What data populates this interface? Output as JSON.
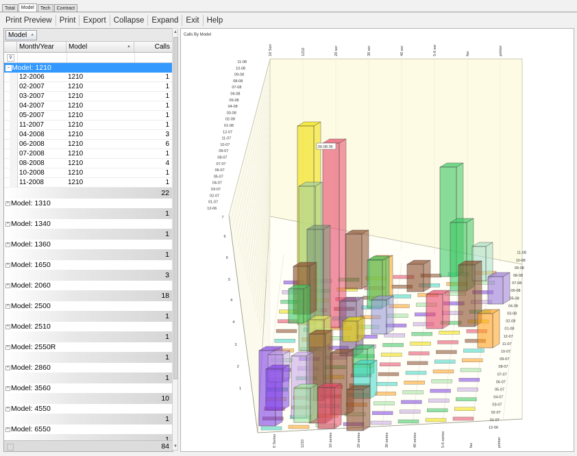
{
  "tabs": [
    {
      "label": "Total",
      "active": false
    },
    {
      "label": "Model",
      "active": true
    },
    {
      "label": "Tech",
      "active": false
    },
    {
      "label": "Contract",
      "active": false
    }
  ],
  "toolbar": {
    "print_preview": "Print Preview",
    "print": "Print",
    "export": "Export",
    "collapse": "Collapse",
    "expand": "Expand",
    "exit": "Exit",
    "help": "Help"
  },
  "grid": {
    "group_chip": "Model",
    "columns": [
      "Month/Year",
      "Model",
      "Calls"
    ],
    "expanded_group": {
      "label": "Model:  1210",
      "rows": [
        [
          "12-2006",
          "1210",
          "1"
        ],
        [
          "02-2007",
          "1210",
          "1"
        ],
        [
          "03-2007",
          "1210",
          "1"
        ],
        [
          "04-2007",
          "1210",
          "1"
        ],
        [
          "05-2007",
          "1210",
          "1"
        ],
        [
          "11-2007",
          "1210",
          "1"
        ],
        [
          "04-2008",
          "1210",
          "3"
        ],
        [
          "06-2008",
          "1210",
          "6"
        ],
        [
          "07-2008",
          "1210",
          "1"
        ],
        [
          "08-2008",
          "1210",
          "4"
        ],
        [
          "10-2008",
          "1210",
          "1"
        ],
        [
          "11-2008",
          "1210",
          "1"
        ]
      ],
      "total": "22"
    },
    "collapsed_groups": [
      {
        "label": "Model:  1310",
        "total": "1"
      },
      {
        "label": "Model:  1340",
        "total": "1"
      },
      {
        "label": "Model:  1360",
        "total": "1"
      },
      {
        "label": "Model:  1650",
        "total": "3"
      },
      {
        "label": "Model:  2060",
        "total": "18"
      },
      {
        "label": "Model:  2500",
        "total": "1"
      },
      {
        "label": "Model:  2510",
        "total": "1"
      },
      {
        "label": "Model:  2550R",
        "total": "1"
      },
      {
        "label": "Model:  2860",
        "total": "1"
      },
      {
        "label": "Model:  3560",
        "total": "10"
      },
      {
        "label": "Model:  4550",
        "total": "1"
      },
      {
        "label": "Model:  6550",
        "total": "1"
      }
    ],
    "grand_total": "84"
  },
  "chart_data": {
    "type": "bar",
    "title": "Calls By Model",
    "top_axis_labels": [
      "10 Seri",
      "1210",
      "20 ser",
      "30 ser",
      "40 ser",
      "5-6 ser",
      "fax",
      "printer"
    ],
    "bottom_axis_labels": [
      "0 Series",
      "1210",
      "10 series",
      "20 series",
      "30 series",
      "40 series",
      "5-6 series",
      "fax",
      "printer"
    ],
    "month_labels": [
      "12-06",
      "01-07",
      "02-07",
      "03-07",
      "04-07",
      "05-07",
      "06-07",
      "07-07",
      "08-07",
      "09-07",
      "10-07",
      "11-07",
      "12-07",
      "01-08",
      "02-08",
      "03-08",
      "04-08",
      "05-08",
      "06-08",
      "07-08",
      "08-08",
      "09-08",
      "10-08",
      "11-08"
    ],
    "y_ticks": [
      "1",
      "2",
      "3",
      "4",
      "4",
      "5",
      "6",
      "6",
      "7"
    ],
    "tooltip": "06-08  06",
    "series_colors": [
      "#7f3fe6",
      "#c8a8e8",
      "#3cc864",
      "#f0e000",
      "#e84a6a",
      "#8a4a2a",
      "#40d8c8",
      "#ffa020",
      "#a0e8a0"
    ],
    "bars": [
      {
        "model": "1210",
        "month": "06-08",
        "calls": 6,
        "color": "#f0e000"
      },
      {
        "model": "20 ser",
        "month": "06-08",
        "calls": 5,
        "color": "#e84a6a"
      },
      {
        "model": "10 Seri",
        "month": "08-08",
        "calls": 4,
        "color": "#a0d8a0"
      },
      {
        "model": "fax",
        "month": "11-08",
        "calls": 4,
        "color": "#3cc864"
      }
    ]
  }
}
